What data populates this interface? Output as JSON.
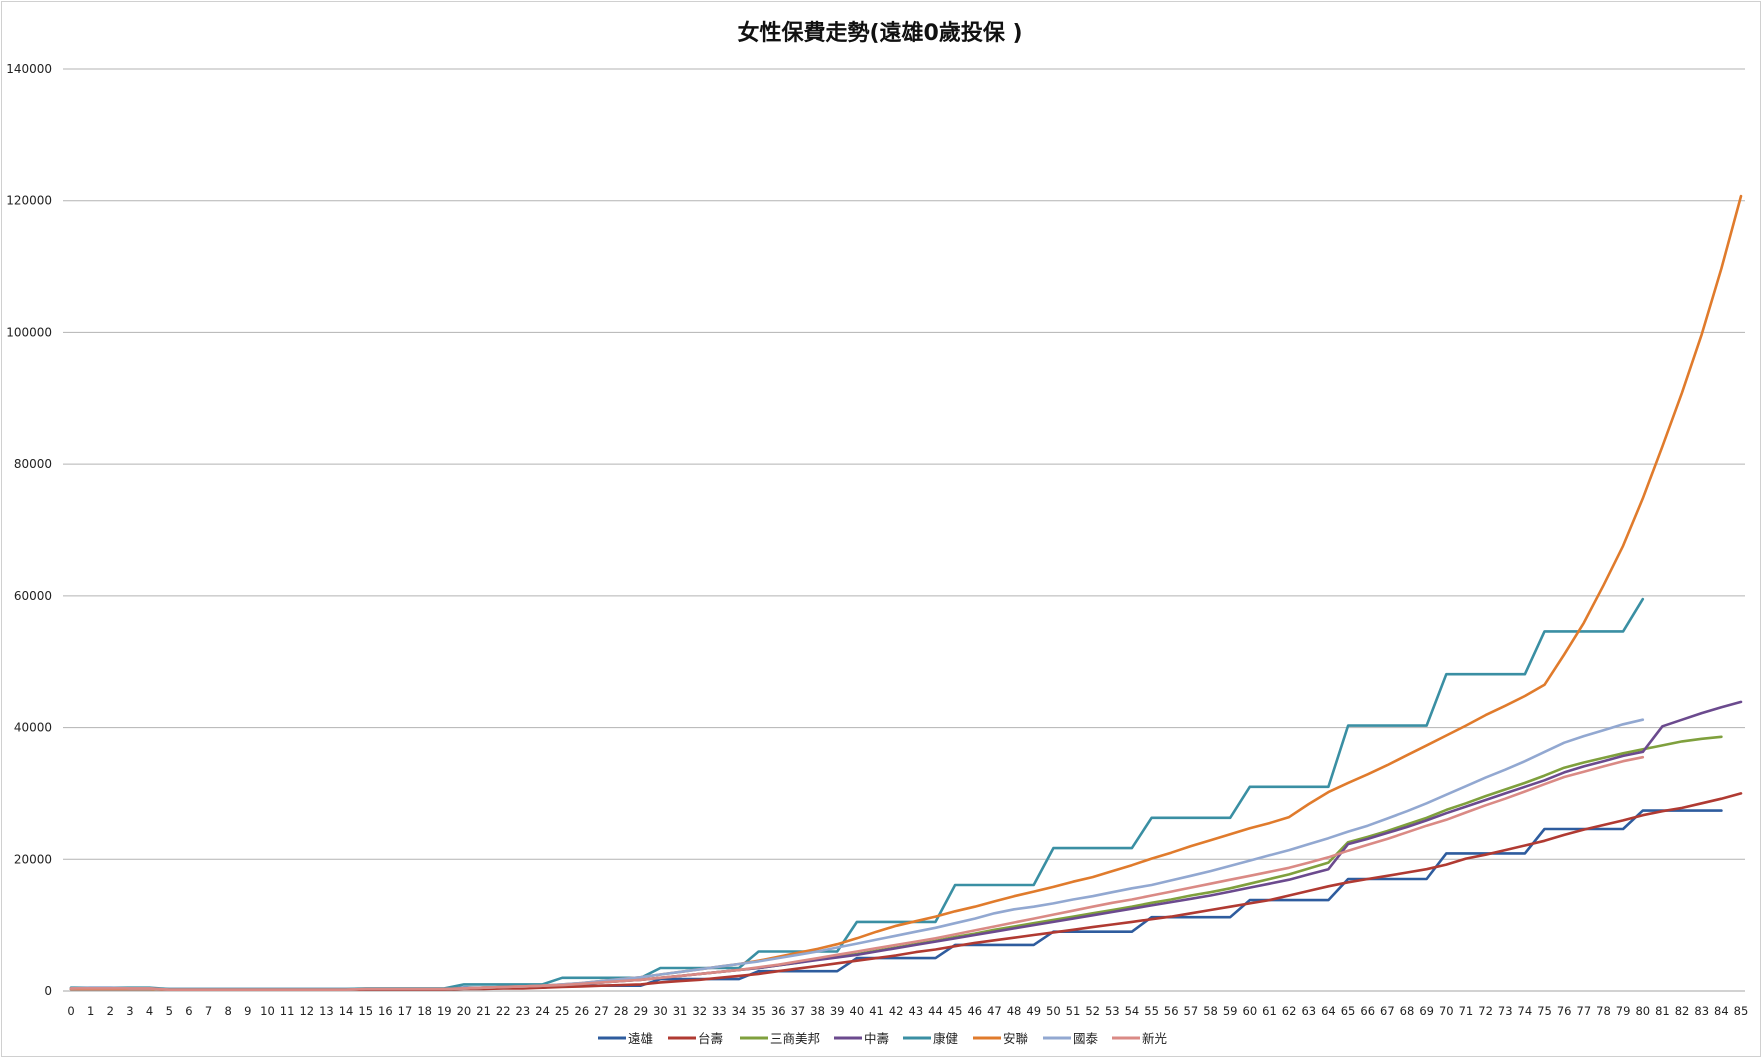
{
  "chart_data": {
    "type": "line",
    "title": "女性保費走勢(遠雄0歲投保 )",
    "xlabel": "",
    "ylabel": "",
    "ylim": [
      0,
      140000
    ],
    "yticks": [
      0,
      20000,
      40000,
      60000,
      80000,
      100000,
      120000,
      140000
    ],
    "x": [
      0,
      1,
      2,
      3,
      4,
      5,
      6,
      7,
      8,
      9,
      10,
      11,
      12,
      13,
      14,
      15,
      16,
      17,
      18,
      19,
      20,
      21,
      22,
      23,
      24,
      25,
      26,
      27,
      28,
      29,
      30,
      31,
      32,
      33,
      34,
      35,
      36,
      37,
      38,
      39,
      40,
      41,
      42,
      43,
      44,
      45,
      46,
      47,
      48,
      49,
      50,
      51,
      52,
      53,
      54,
      55,
      56,
      57,
      58,
      59,
      60,
      61,
      62,
      63,
      64,
      65,
      66,
      67,
      68,
      69,
      70,
      71,
      72,
      73,
      74,
      75,
      76,
      77,
      78,
      79,
      80,
      81,
      82,
      83,
      84,
      85
    ],
    "grid": true,
    "legend_position": "bottom",
    "series": [
      {
        "name": "遠雄",
        "color": "#2E5C9E",
        "values": [
          300,
          300,
          300,
          300,
          300,
          300,
          300,
          300,
          300,
          300,
          300,
          300,
          300,
          300,
          300,
          300,
          300,
          300,
          300,
          300,
          500,
          500,
          500,
          500,
          500,
          800,
          800,
          800,
          800,
          800,
          1800,
          1800,
          1800,
          1800,
          1800,
          3000,
          3000,
          3000,
          3000,
          3000,
          5000,
          5000,
          5000,
          5000,
          5000,
          7000,
          7000,
          7000,
          7000,
          7000,
          9000,
          9000,
          9000,
          9000,
          9000,
          11200,
          11200,
          11200,
          11200,
          11200,
          13800,
          13800,
          13800,
          13800,
          13800,
          17000,
          17000,
          17000,
          17000,
          17000,
          20900,
          20900,
          20900,
          20900,
          20900,
          24600,
          24600,
          24600,
          24600,
          24600,
          27400,
          27400,
          27400,
          27400,
          27400,
          null
        ]
      },
      {
        "name": "台壽",
        "color": "#B03A32",
        "values": [
          300,
          300,
          300,
          300,
          300,
          200,
          200,
          200,
          200,
          200,
          200,
          200,
          200,
          200,
          200,
          200,
          200,
          200,
          200,
          200,
          300,
          300,
          400,
          400,
          500,
          600,
          700,
          800,
          900,
          1000,
          1300,
          1500,
          1700,
          2000,
          2300,
          2600,
          3000,
          3400,
          3800,
          4200,
          4600,
          5000,
          5400,
          5900,
          6300,
          6800,
          7300,
          7700,
          8100,
          8500,
          8900,
          9300,
          9700,
          10100,
          10500,
          10900,
          11300,
          11800,
          12300,
          12800,
          13300,
          13800,
          14500,
          15200,
          15900,
          16500,
          17000,
          17500,
          18000,
          18500,
          19200,
          20100,
          20700,
          21400,
          22100,
          22800,
          23700,
          24500,
          25200,
          25900,
          26700,
          27300,
          27800,
          28500,
          29200,
          30000
        ]
      },
      {
        "name": "三商美邦",
        "color": "#7FA03D",
        "values": [
          400,
          400,
          400,
          400,
          400,
          200,
          200,
          200,
          200,
          200,
          200,
          200,
          200,
          200,
          200,
          300,
          300,
          300,
          300,
          300,
          400,
          500,
          600,
          700,
          800,
          900,
          1100,
          1300,
          1500,
          1700,
          2000,
          2300,
          2600,
          2900,
          3200,
          3500,
          3900,
          4300,
          4800,
          5200,
          5600,
          6100,
          6600,
          7100,
          7600,
          8200,
          8700,
          9300,
          9800,
          10300,
          10800,
          11300,
          11800,
          12300,
          12800,
          13400,
          13900,
          14500,
          15000,
          15600,
          16300,
          17000,
          17700,
          18600,
          19500,
          22600,
          23400,
          24300,
          25300,
          26300,
          27500,
          28500,
          29600,
          30600,
          31600,
          32700,
          33900,
          34700,
          35400,
          36100,
          36700,
          37300,
          37900,
          38300,
          38600,
          null
        ]
      },
      {
        "name": "中壽",
        "color": "#6B4A8E",
        "values": [
          400,
          400,
          400,
          400,
          400,
          200,
          200,
          200,
          200,
          200,
          200,
          200,
          200,
          200,
          200,
          300,
          300,
          300,
          300,
          300,
          400,
          500,
          600,
          700,
          800,
          900,
          1100,
          1300,
          1500,
          1700,
          2000,
          2300,
          2600,
          2900,
          3200,
          3500,
          3900,
          4300,
          4700,
          5100,
          5500,
          6000,
          6500,
          7000,
          7500,
          8000,
          8500,
          9000,
          9500,
          10000,
          10500,
          11000,
          11500,
          12000,
          12500,
          13000,
          13500,
          14000,
          14500,
          15100,
          15700,
          16300,
          16900,
          17700,
          18500,
          22300,
          23100,
          24000,
          24900,
          25900,
          27000,
          28000,
          29000,
          30000,
          31000,
          32000,
          33200,
          34100,
          34900,
          35700,
          36300,
          40200,
          41200,
          42200,
          43100,
          43900
        ]
      },
      {
        "name": "康健",
        "color": "#3A8FA3",
        "values": [
          500,
          500,
          500,
          500,
          500,
          300,
          300,
          300,
          300,
          300,
          300,
          300,
          300,
          300,
          300,
          400,
          400,
          400,
          400,
          400,
          1000,
          1000,
          1000,
          1000,
          1000,
          2000,
          2000,
          2000,
          2000,
          2000,
          3500,
          3500,
          3500,
          3500,
          3500,
          6000,
          6000,
          6000,
          6000,
          6000,
          10500,
          10500,
          10500,
          10500,
          10500,
          16100,
          16100,
          16100,
          16100,
          16100,
          21700,
          21700,
          21700,
          21700,
          21700,
          26300,
          26300,
          26300,
          26300,
          26300,
          31000,
          31000,
          31000,
          31000,
          31000,
          40300,
          40300,
          40300,
          40300,
          40300,
          48100,
          48100,
          48100,
          48100,
          48100,
          54600,
          54600,
          54600,
          54600,
          54600,
          59500,
          null,
          null,
          null,
          null,
          null
        ]
      },
      {
        "name": "安聯",
        "color": "#E07B2C",
        "values": [
          300,
          300,
          300,
          300,
          300,
          200,
          200,
          200,
          200,
          200,
          200,
          200,
          200,
          200,
          200,
          300,
          300,
          300,
          300,
          300,
          400,
          500,
          600,
          700,
          800,
          1000,
          1200,
          1500,
          1800,
          2100,
          2500,
          2900,
          3300,
          3700,
          4100,
          4600,
          5200,
          5800,
          6400,
          7100,
          8000,
          9000,
          9900,
          10600,
          11300,
          12100,
          12800,
          13600,
          14400,
          15100,
          15800,
          16600,
          17300,
          18200,
          19100,
          20100,
          21000,
          22000,
          22900,
          23800,
          24700,
          25500,
          26400,
          28400,
          30200,
          31600,
          32900,
          34300,
          35800,
          37300,
          38800,
          40300,
          41900,
          43300,
          44800,
          46500,
          51100,
          55900,
          61600,
          67600,
          74800,
          82700,
          90900,
          99700,
          109700,
          120700
        ]
      },
      {
        "name": "國泰",
        "color": "#92A8D1",
        "values": [
          400,
          500,
          500,
          400,
          400,
          200,
          200,
          200,
          200,
          200,
          200,
          200,
          200,
          200,
          200,
          300,
          300,
          300,
          300,
          300,
          400,
          500,
          600,
          700,
          800,
          1000,
          1200,
          1500,
          1800,
          2100,
          2500,
          2900,
          3300,
          3700,
          4100,
          4500,
          5000,
          5500,
          6000,
          6600,
          7200,
          7800,
          8400,
          9000,
          9600,
          10300,
          11000,
          11800,
          12400,
          12800,
          13300,
          13900,
          14400,
          15000,
          15600,
          16100,
          16800,
          17500,
          18200,
          19000,
          19800,
          20600,
          21400,
          22300,
          23200,
          24200,
          25100,
          26200,
          27300,
          28500,
          29800,
          31100,
          32400,
          33600,
          34900,
          36300,
          37700,
          38700,
          39600,
          40500,
          41200,
          null,
          null,
          null,
          null,
          null
        ]
      },
      {
        "name": "新光",
        "color": "#DA8A85",
        "values": [
          400,
          400,
          400,
          400,
          400,
          200,
          200,
          200,
          200,
          200,
          200,
          200,
          200,
          200,
          200,
          300,
          300,
          300,
          300,
          300,
          400,
          500,
          600,
          700,
          800,
          900,
          1100,
          1300,
          1500,
          1700,
          2000,
          2300,
          2600,
          2900,
          3200,
          3600,
          4000,
          4500,
          5000,
          5500,
          6000,
          6500,
          7000,
          7500,
          8000,
          8600,
          9200,
          9800,
          10400,
          11000,
          11600,
          12200,
          12800,
          13400,
          13900,
          14500,
          15100,
          15700,
          16300,
          16900,
          17500,
          18100,
          18700,
          19500,
          20300,
          21300,
          22200,
          23100,
          24100,
          25100,
          26000,
          27100,
          28200,
          29200,
          30300,
          31400,
          32500,
          33300,
          34100,
          34900,
          35500,
          null,
          null,
          null,
          null,
          null
        ]
      }
    ]
  }
}
